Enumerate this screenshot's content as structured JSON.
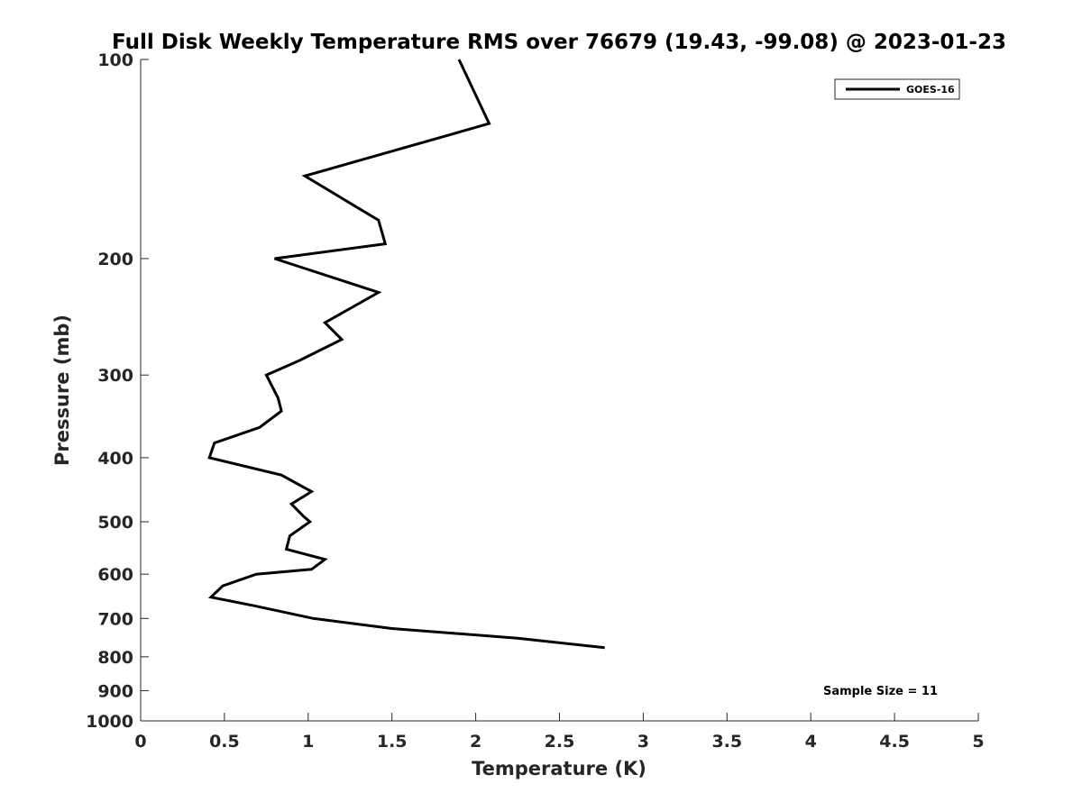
{
  "chart_data": {
    "type": "line",
    "title": "Full Disk Weekly Temperature RMS over 76679 (19.43, -99.08) @ 2023-01-23",
    "xlabel": "Temperature (K)",
    "ylabel": "Pressure (mb)",
    "xlim": [
      0,
      5
    ],
    "ylim": [
      100,
      1000
    ],
    "yscale": "log",
    "y_reversed": true,
    "grid": false,
    "legend_position": "top-right",
    "x_ticks": [
      "0",
      "0.5",
      "1",
      "1.5",
      "2",
      "2.5",
      "3",
      "3.5",
      "4",
      "4.5",
      "5"
    ],
    "y_ticks": [
      "100",
      "200",
      "300",
      "400",
      "500",
      "600",
      "700",
      "800",
      "900",
      "1000"
    ],
    "series": [
      {
        "name": "GOES-16",
        "color": "#000000",
        "x": [
          1.9,
          2.08,
          0.98,
          1.42,
          1.46,
          0.8,
          1.42,
          1.1,
          1.2,
          0.95,
          0.75,
          0.82,
          0.84,
          0.71,
          0.44,
          0.41,
          0.84,
          1.02,
          0.9,
          0.97,
          1.01,
          0.89,
          0.87,
          1.1,
          1.02,
          0.69,
          0.49,
          0.42,
          0.68,
          1.03,
          1.5,
          2.25,
          2.77
        ],
        "y": [
          100,
          125,
          150,
          175,
          190,
          200,
          225,
          250,
          265,
          285,
          300,
          325,
          340,
          360,
          380,
          400,
          425,
          450,
          470,
          490,
          500,
          525,
          550,
          570,
          590,
          600,
          625,
          650,
          670,
          700,
          725,
          750,
          775
        ]
      }
    ],
    "annotation": "Sample Size = 11"
  }
}
